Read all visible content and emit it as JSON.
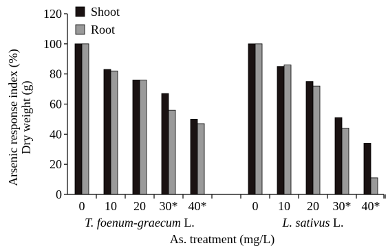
{
  "chart_data": {
    "type": "bar",
    "ylabel_lines": [
      "Arsenic response index (%)",
      "Dry weight (g)"
    ],
    "xlabel": "As. treatment (mg/L)",
    "ylim": [
      0,
      120
    ],
    "yticks": [
      0,
      20,
      40,
      60,
      80,
      100,
      120
    ],
    "legend_position": "top-left",
    "groups": [
      {
        "label_italic": "T. foenum-graecum",
        "label_suffix": " L.",
        "categories": [
          "0",
          "10",
          "20",
          "30*",
          "40*"
        ]
      },
      {
        "label_italic": "L. sativus",
        "label_suffix": " L.",
        "categories": [
          "0",
          "10",
          "20",
          "30*",
          "40*"
        ]
      }
    ],
    "series": [
      {
        "name": "Shoot",
        "color": "#1a1212",
        "values": [
          [
            100,
            83,
            76,
            67,
            50
          ],
          [
            100,
            85,
            75,
            51,
            34
          ]
        ]
      },
      {
        "name": "Root",
        "color": "#9a9a9a",
        "values": [
          [
            100,
            82,
            76,
            56,
            47
          ],
          [
            100,
            86,
            72,
            44,
            11
          ]
        ]
      }
    ]
  }
}
